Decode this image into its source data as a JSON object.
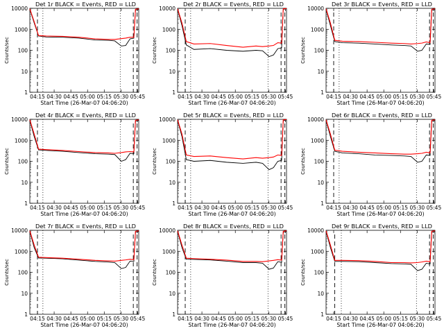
{
  "colors": {
    "events": "#000000",
    "lld": "#ff0000",
    "frame": "#000000"
  },
  "x_ticks": [
    "04:15",
    "04:30",
    "04:45",
    "05:00",
    "05:15",
    "05:30",
    "05:45"
  ],
  "y_ticks": [
    "1",
    "10",
    "100",
    "1000",
    "10000"
  ],
  "xlabel": "Start Time (26-Mar-07 04:06:20)",
  "ylabel": "Counts/sec",
  "chart_data": [
    {
      "type": "line",
      "title": "Det 1r BLACK = Events, RED = LLD",
      "ylim": [
        1,
        10000
      ],
      "yscale": "log",
      "x": [
        0,
        0.04,
        0.08,
        0.15,
        0.3,
        0.45,
        0.6,
        0.72,
        0.78,
        0.84,
        0.88,
        0.92,
        0.955,
        0.97,
        1.0
      ],
      "series": [
        {
          "name": "Events",
          "color": "#000000",
          "values": [
            9000,
            2000,
            480,
            430,
            420,
            380,
            310,
            300,
            280,
            160,
            170,
            350,
            380,
            8000,
            9000
          ]
        },
        {
          "name": "LLD",
          "color": "#ff0000",
          "values": [
            9500,
            2300,
            500,
            480,
            460,
            420,
            350,
            330,
            330,
            360,
            380,
            420,
            420,
            9000,
            9500
          ]
        }
      ],
      "markers": {
        "dashed": [
          0.07,
          0.95,
          0.985
        ],
        "dotted": [
          0.12,
          0.83
        ]
      }
    },
    {
      "type": "line",
      "title": "Det 2r BLACK = Events, RED = LLD",
      "ylim": [
        1,
        10000
      ],
      "yscale": "log",
      "x": [
        0,
        0.04,
        0.08,
        0.15,
        0.3,
        0.45,
        0.6,
        0.72,
        0.78,
        0.84,
        0.88,
        0.92,
        0.955,
        0.97,
        1.0
      ],
      "series": [
        {
          "name": "Events",
          "color": "#000000",
          "values": [
            9000,
            1500,
            180,
            110,
            120,
            100,
            90,
            100,
            95,
            50,
            60,
            120,
            130,
            9000,
            9500
          ]
        },
        {
          "name": "LLD",
          "color": "#ff0000",
          "values": [
            9500,
            2000,
            260,
            200,
            210,
            170,
            140,
            160,
            150,
            160,
            170,
            230,
            220,
            9500,
            9800
          ]
        }
      ],
      "markers": {
        "dashed": [
          0.07,
          0.95,
          0.985
        ],
        "dotted": [
          0.12,
          0.83
        ]
      }
    },
    {
      "type": "line",
      "title": "Det 3r BLACK = Events, RED = LLD",
      "ylim": [
        1,
        10000
      ],
      "yscale": "log",
      "x": [
        0,
        0.04,
        0.08,
        0.15,
        0.3,
        0.45,
        0.6,
        0.72,
        0.78,
        0.84,
        0.88,
        0.92,
        0.955,
        0.97,
        1.0
      ],
      "series": [
        {
          "name": "Events",
          "color": "#000000",
          "values": [
            9000,
            1500,
            260,
            230,
            220,
            200,
            180,
            170,
            160,
            90,
            100,
            200,
            190,
            8000,
            9000
          ]
        },
        {
          "name": "LLD",
          "color": "#ff0000",
          "values": [
            9500,
            2000,
            300,
            270,
            260,
            240,
            220,
            210,
            200,
            210,
            220,
            250,
            230,
            9000,
            9500
          ]
        }
      ],
      "markers": {
        "dashed": [
          0.07,
          0.95,
          0.985
        ],
        "dotted": [
          0.12,
          0.83
        ]
      }
    },
    {
      "type": "line",
      "title": "Det 4r BLACK = Events, RED = LLD",
      "ylim": [
        1,
        10000
      ],
      "yscale": "log",
      "x": [
        0,
        0.04,
        0.08,
        0.15,
        0.3,
        0.45,
        0.6,
        0.72,
        0.78,
        0.84,
        0.88,
        0.92,
        0.955,
        0.97,
        1.0
      ],
      "series": [
        {
          "name": "Events",
          "color": "#000000",
          "values": [
            9000,
            1500,
            350,
            330,
            300,
            260,
            230,
            220,
            210,
            100,
            120,
            240,
            230,
            8000,
            9000
          ]
        },
        {
          "name": "LLD",
          "color": "#ff0000",
          "values": [
            9500,
            2000,
            380,
            360,
            330,
            290,
            260,
            250,
            240,
            260,
            280,
            290,
            280,
            9000,
            9500
          ]
        }
      ],
      "markers": {
        "dashed": [
          0.07,
          0.95,
          0.985
        ],
        "dotted": [
          0.12,
          0.83
        ]
      }
    },
    {
      "type": "line",
      "title": "Det 5r BLACK = Events, RED = LLD",
      "ylim": [
        1,
        10000
      ],
      "yscale": "log",
      "x": [
        0,
        0.04,
        0.08,
        0.15,
        0.3,
        0.45,
        0.6,
        0.72,
        0.78,
        0.84,
        0.88,
        0.92,
        0.955,
        0.97,
        1.0
      ],
      "series": [
        {
          "name": "Events",
          "color": "#000000",
          "values": [
            9000,
            1500,
            120,
            100,
            110,
            90,
            80,
            90,
            80,
            40,
            50,
            100,
            110,
            8500,
            9500
          ]
        },
        {
          "name": "LLD",
          "color": "#ff0000",
          "values": [
            9500,
            2000,
            200,
            170,
            180,
            150,
            130,
            150,
            140,
            150,
            160,
            200,
            190,
            9500,
            9800
          ]
        }
      ],
      "markers": {
        "dashed": [
          0.07,
          0.95,
          0.985
        ],
        "dotted": [
          0.12,
          0.83
        ]
      }
    },
    {
      "type": "line",
      "title": "Det 6r BLACK = Events, RED = LLD",
      "ylim": [
        1,
        10000
      ],
      "yscale": "log",
      "x": [
        0,
        0.04,
        0.08,
        0.15,
        0.3,
        0.45,
        0.6,
        0.72,
        0.78,
        0.84,
        0.88,
        0.92,
        0.955,
        0.97,
        1.0
      ],
      "series": [
        {
          "name": "Events",
          "color": "#000000",
          "values": [
            9000,
            1500,
            300,
            250,
            230,
            200,
            190,
            180,
            170,
            90,
            100,
            200,
            190,
            8000,
            9000
          ]
        },
        {
          "name": "LLD",
          "color": "#ff0000",
          "values": [
            9500,
            2000,
            340,
            300,
            270,
            250,
            230,
            220,
            220,
            230,
            240,
            270,
            250,
            9000,
            9500
          ]
        }
      ],
      "markers": {
        "dashed": [
          0.07,
          0.95,
          0.985
        ],
        "dotted": [
          0.12,
          0.83
        ]
      }
    },
    {
      "type": "line",
      "title": "Det 7r BLACK = Events, RED = LLD",
      "ylim": [
        1,
        10000
      ],
      "yscale": "log",
      "x": [
        0,
        0.04,
        0.08,
        0.15,
        0.3,
        0.45,
        0.6,
        0.72,
        0.78,
        0.84,
        0.88,
        0.92,
        0.955,
        0.97,
        1.0
      ],
      "series": [
        {
          "name": "Events",
          "color": "#000000",
          "values": [
            9000,
            1500,
            480,
            470,
            440,
            380,
            330,
            310,
            290,
            150,
            170,
            340,
            330,
            8000,
            9000
          ]
        },
        {
          "name": "LLD",
          "color": "#ff0000",
          "values": [
            9500,
            2000,
            520,
            500,
            470,
            420,
            370,
            350,
            340,
            370,
            390,
            420,
            400,
            9000,
            9500
          ]
        }
      ],
      "markers": {
        "dashed": [
          0.07,
          0.95,
          0.985
        ],
        "dotted": [
          0.12,
          0.83
        ]
      }
    },
    {
      "type": "line",
      "title": "Det 8r BLACK = Events, RED = LLD",
      "ylim": [
        1,
        10000
      ],
      "yscale": "log",
      "x": [
        0,
        0.04,
        0.08,
        0.15,
        0.3,
        0.45,
        0.6,
        0.72,
        0.78,
        0.84,
        0.88,
        0.92,
        0.955,
        0.97,
        1.0
      ],
      "series": [
        {
          "name": "Events",
          "color": "#000000",
          "values": [
            9000,
            1500,
            420,
            410,
            390,
            340,
            290,
            290,
            270,
            140,
            160,
            320,
            300,
            8000,
            9000
          ]
        },
        {
          "name": "LLD",
          "color": "#ff0000",
          "values": [
            9500,
            2000,
            470,
            450,
            420,
            380,
            330,
            330,
            320,
            350,
            370,
            400,
            380,
            9000,
            9500
          ]
        }
      ],
      "markers": {
        "dashed": [
          0.07,
          0.95,
          0.985
        ],
        "dotted": [
          0.12,
          0.83
        ]
      }
    },
    {
      "type": "line",
      "title": "Det 9r BLACK = Events, RED = LLD",
      "ylim": [
        1,
        10000
      ],
      "yscale": "log",
      "x": [
        0,
        0.04,
        0.08,
        0.15,
        0.3,
        0.45,
        0.6,
        0.72,
        0.78,
        0.84,
        0.88,
        0.92,
        0.955,
        0.97,
        1.0
      ],
      "series": [
        {
          "name": "Events",
          "color": "#000000",
          "values": [
            9000,
            1500,
            330,
            330,
            320,
            290,
            260,
            250,
            240,
            120,
            140,
            270,
            250,
            8000,
            9000
          ]
        },
        {
          "name": "LLD",
          "color": "#ff0000",
          "values": [
            9500,
            2000,
            370,
            370,
            360,
            330,
            290,
            290,
            280,
            290,
            310,
            340,
            320,
            9000,
            9500
          ]
        }
      ],
      "markers": {
        "dashed": [
          0.08,
          0.95,
          0.985
        ],
        "dotted": [
          0.14,
          0.83
        ]
      }
    }
  ]
}
